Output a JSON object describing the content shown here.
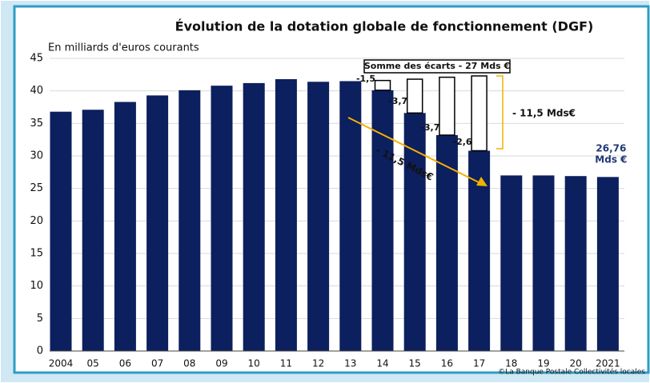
{
  "chart_data": {
    "type": "bar",
    "title": "Évolution de la dotation globale de fonctionnement (DGF)",
    "subtitle": "En milliards d'euros courants",
    "source": "©La Banque Postale Collectivités locales",
    "categories": [
      "2004",
      "05",
      "06",
      "07",
      "08",
      "09",
      "10",
      "11",
      "12",
      "13",
      "14",
      "15",
      "16",
      "17",
      "18",
      "19",
      "20",
      "2021"
    ],
    "values": [
      36.8,
      37.1,
      38.3,
      39.3,
      40.1,
      40.8,
      41.2,
      41.8,
      41.4,
      41.5,
      40.1,
      36.6,
      33.2,
      30.8,
      27.0,
      27.0,
      26.9,
      26.76
    ],
    "value_labels": [
      null,
      null,
      null,
      null,
      null,
      null,
      null,
      null,
      null,
      null,
      null,
      null,
      null,
      null,
      null,
      null,
      null,
      "26,76 Mds €"
    ],
    "color": "#0c1f5e",
    "gaps": {
      "start": 10,
      "values": [
        1.5,
        5.2,
        8.9,
        11.5
      ],
      "labels": [
        "-1,5",
        "-3,7",
        "-3,7",
        "-2,6"
      ],
      "color": "#ffffff"
    },
    "gap_sum_label": "Somme des écarts - 27 Mds €",
    "bracket_label": "- 11,5 Mds€",
    "arrow_label": "- 11,5 Mds€",
    "annotation_color": "#f2b100",
    "ylim": [
      0,
      45
    ],
    "yticks": [
      0,
      5,
      10,
      15,
      20,
      25,
      30,
      35,
      40,
      45
    ],
    "grid": true
  }
}
